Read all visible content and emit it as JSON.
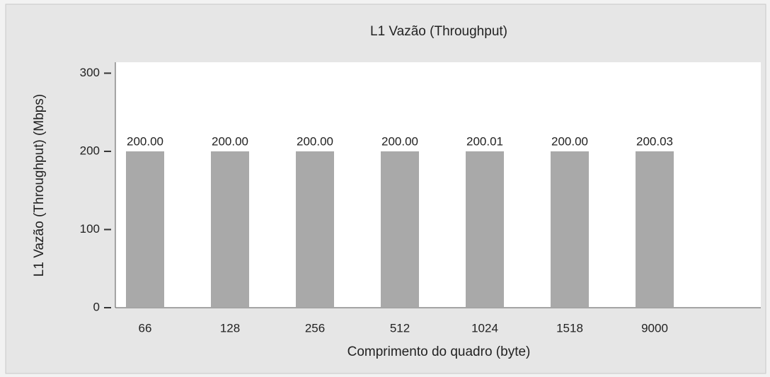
{
  "chart_data": {
    "type": "bar",
    "title": "L1 Vazão (Throughput)",
    "x_label": "Comprimento do quadro (byte)",
    "y_label": "L1 Vazão (Throughput) (Mbps)",
    "categories": [
      "66",
      "128",
      "256",
      "512",
      "1024",
      "1518",
      "9000"
    ],
    "values": [
      200,
      200,
      200,
      200,
      200.01,
      200,
      200.03
    ],
    "value_labels": [
      "200.00",
      "200.00",
      "200.00",
      "200.00",
      "200.01",
      "200.00",
      "200.03"
    ],
    "color": "#a9a9a9",
    "ylim": [
      0,
      314
    ],
    "yticks": [
      0,
      100,
      200,
      300
    ],
    "grid": false
  }
}
